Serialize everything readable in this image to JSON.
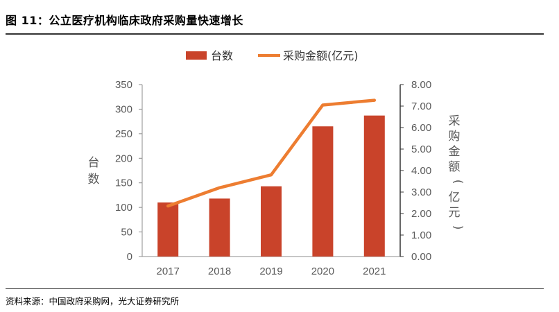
{
  "figure": {
    "title": "图 11：公立医疗机构临床政府采购量快速增长",
    "source": "资料来源：中国政府采购网，光大证券研究所"
  },
  "chart_data": {
    "type": "bar",
    "categories": [
      "2017",
      "2018",
      "2019",
      "2020",
      "2021"
    ],
    "series": [
      {
        "name": "台数",
        "kind": "bar",
        "axis": "left",
        "color": "#C9432A",
        "values": [
          110,
          118,
          143,
          265,
          287
        ]
      },
      {
        "name": "采购金额(亿元)",
        "kind": "line",
        "axis": "right",
        "color": "#ED7D31",
        "values": [
          2.35,
          3.2,
          3.8,
          7.05,
          7.27
        ]
      }
    ],
    "y_left": {
      "label": "台数",
      "ylim": [
        0,
        350
      ],
      "ticks": [
        "0",
        "50",
        "100",
        "150",
        "200",
        "250",
        "300",
        "350"
      ]
    },
    "y_right": {
      "label": "采购金额(亿元)",
      "ylim": [
        0,
        8
      ],
      "ticks": [
        "0.00",
        "1.00",
        "2.00",
        "3.00",
        "4.00",
        "5.00",
        "6.00",
        "7.00",
        "8.00"
      ]
    },
    "legend": "top-center",
    "grid": false
  }
}
